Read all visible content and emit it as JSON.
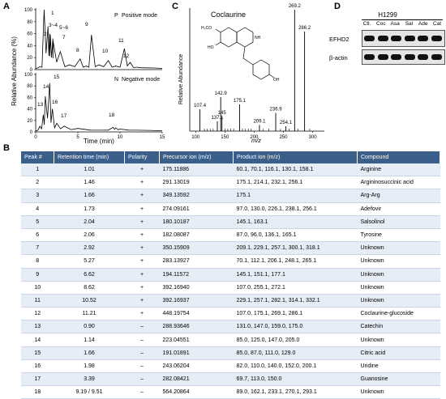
{
  "panels": {
    "a": "A",
    "b": "B",
    "c": "C",
    "d": "D"
  },
  "panel_a": {
    "ylabel": "Relative Abundance (%)",
    "xlabel": "Time (min)",
    "positive_legend": "Positive mode",
    "positive_marker": "P",
    "negative_legend": "Negative mode",
    "negative_marker": "N",
    "yticks": [
      "0",
      "20",
      "40",
      "60",
      "80",
      "100"
    ],
    "xticks": [
      "0",
      "5",
      "10",
      "15"
    ],
    "pos_peak_labels": [
      "1",
      "2",
      "3",
      "4",
      "5",
      "6",
      "7",
      "8",
      "9",
      "10",
      "11",
      "12"
    ],
    "neg_peak_labels": [
      "13",
      "14",
      "15",
      "16",
      "17",
      "18"
    ],
    "peak_label_text": {
      "p1": "1",
      "p2": "2",
      "p345": "3~4",
      "p56": "5~6",
      "p7": "7",
      "p8": "8",
      "p9": "9",
      "p10": "10",
      "p11": "11",
      "p12": "12",
      "n13": "13",
      "n14": "14",
      "n15": "15",
      "n16": "16",
      "n17": "17",
      "n18": "18"
    }
  },
  "chart_data": [
    {
      "type": "line",
      "title": "",
      "xlabel": "Time (min)",
      "ylabel": "Relative Abundance (%)",
      "series": [
        {
          "name": "Positive mode",
          "x": [
            0,
            0.5,
            1.0,
            1.46,
            1.66,
            1.73,
            2.04,
            2.06,
            2.92,
            4,
            5.27,
            6,
            6.62,
            7.5,
            8.62,
            9.5,
            10.52,
            11.21,
            12,
            13,
            15
          ],
          "y": [
            2,
            5,
            100,
            72,
            60,
            58,
            52,
            48,
            30,
            8,
            18,
            6,
            58,
            8,
            15,
            6,
            35,
            12,
            4,
            3,
            2
          ]
        },
        {
          "name": "Negative mode",
          "x": [
            0,
            0.5,
            0.9,
            1.14,
            1.66,
            1.98,
            2.5,
            3.39,
            5,
            8,
            9.19,
            9.51,
            10,
            12,
            15
          ],
          "y": [
            2,
            10,
            30,
            62,
            85,
            40,
            15,
            10,
            6,
            3,
            8,
            7,
            5,
            3,
            2
          ]
        }
      ],
      "xlim": [
        0,
        15
      ],
      "ylim": [
        0,
        100
      ]
    },
    {
      "type": "bar",
      "title": "Coclaurine",
      "xlabel": "m/z",
      "ylabel": "Relative Abundance",
      "x": [
        107.4,
        137.1,
        142.9,
        145.0,
        175.1,
        209.1,
        236.9,
        254.1,
        269.2,
        286.2
      ],
      "values": [
        18,
        8,
        28,
        12,
        22,
        5,
        15,
        4,
        100,
        82
      ],
      "xticks": [
        "100",
        "150",
        "200",
        "250",
        "300"
      ],
      "xlim": [
        90,
        320
      ]
    }
  ],
  "panel_d": {
    "cell_line": "H1299",
    "lanes": [
      "Ctl.",
      "Coc",
      "Asa",
      "Sal",
      "Ade",
      "Cat"
    ],
    "rows": [
      "EFHD2",
      "β-actin"
    ]
  },
  "table": {
    "headers": [
      "Peak #",
      "Retention time (min)",
      "Polarity",
      "Precursor ion (m/z)",
      "Product ion (m/z)",
      "Compound"
    ],
    "rows": [
      [
        "1",
        "1.01",
        "+",
        "175.11886",
        "60.1, 70.1, 116.1, 130.1, 158.1",
        "Arginine"
      ],
      [
        "2",
        "1.46",
        "+",
        "291.13019",
        "175.1, 214.1, 232.1, 256.1",
        "Argininosuccinic acid"
      ],
      [
        "3",
        "1.66",
        "+",
        "349.13592",
        "175.1",
        "Arg-Arg"
      ],
      [
        "4",
        "1.73",
        "+",
        "274.09161",
        "97.0, 130.0, 226.1, 238.1, 256.1",
        "Adefovir"
      ],
      [
        "5",
        "2.04",
        "+",
        "180.10187",
        "145.1, 163.1",
        "Salsolinol"
      ],
      [
        "6",
        "2.06",
        "+",
        "182.08087",
        "87.0, 96.0, 136.1, 165.1",
        "Tyrosine"
      ],
      [
        "7",
        "2.92",
        "+",
        "350.15909",
        "209.1, 229.1, 257.1, 300.1, 318.1",
        "Unknown"
      ],
      [
        "8",
        "5.27",
        "+",
        "283.13927",
        "70.1, 112.1, 206.1, 248.1, 265.1",
        "Unknown"
      ],
      [
        "9",
        "6.62",
        "+",
        "194.11572",
        "145.1, 151.1, 177.1",
        "Unknown"
      ],
      [
        "10",
        "8.62",
        "+",
        "392.16940",
        "107.0, 255.1, 272.1",
        "Unknown"
      ],
      [
        "11",
        "10.52",
        "+",
        "392.16937",
        "229.1, 257.1, 282.1, 314.1, 332.1",
        "Unknown"
      ],
      [
        "12",
        "11.21",
        "+",
        "448.19754",
        "107.0, 175.1, 269.1, 286.1",
        "Coclaurine-glucoside"
      ],
      [
        "13",
        "0.90",
        "–",
        "288.93646",
        "131.0, 147.0, 159.0, 175.0",
        "Catechin"
      ],
      [
        "14",
        "1.14",
        "–",
        "223.04551",
        "85.0, 125.0, 147.0, 205.0",
        "Unknown"
      ],
      [
        "15",
        "1.66",
        "–",
        "191.01891",
        "85.0, 87.0, 111.0, 129.0",
        "Citric acid"
      ],
      [
        "16",
        "1.98",
        "–",
        "243.06204",
        "82.0, 110.0, 140.0, 152.0, 200.1",
        "Uridine"
      ],
      [
        "17",
        "3.39",
        "–",
        "282.08421",
        "69.7, 113.0, 150.0",
        "Guanosine"
      ],
      [
        "18",
        "9.19 / 9.51",
        "–",
        "564.20864",
        "89.0, 162.1, 233.1, 270.1, 293.1",
        "Unknown"
      ]
    ]
  }
}
